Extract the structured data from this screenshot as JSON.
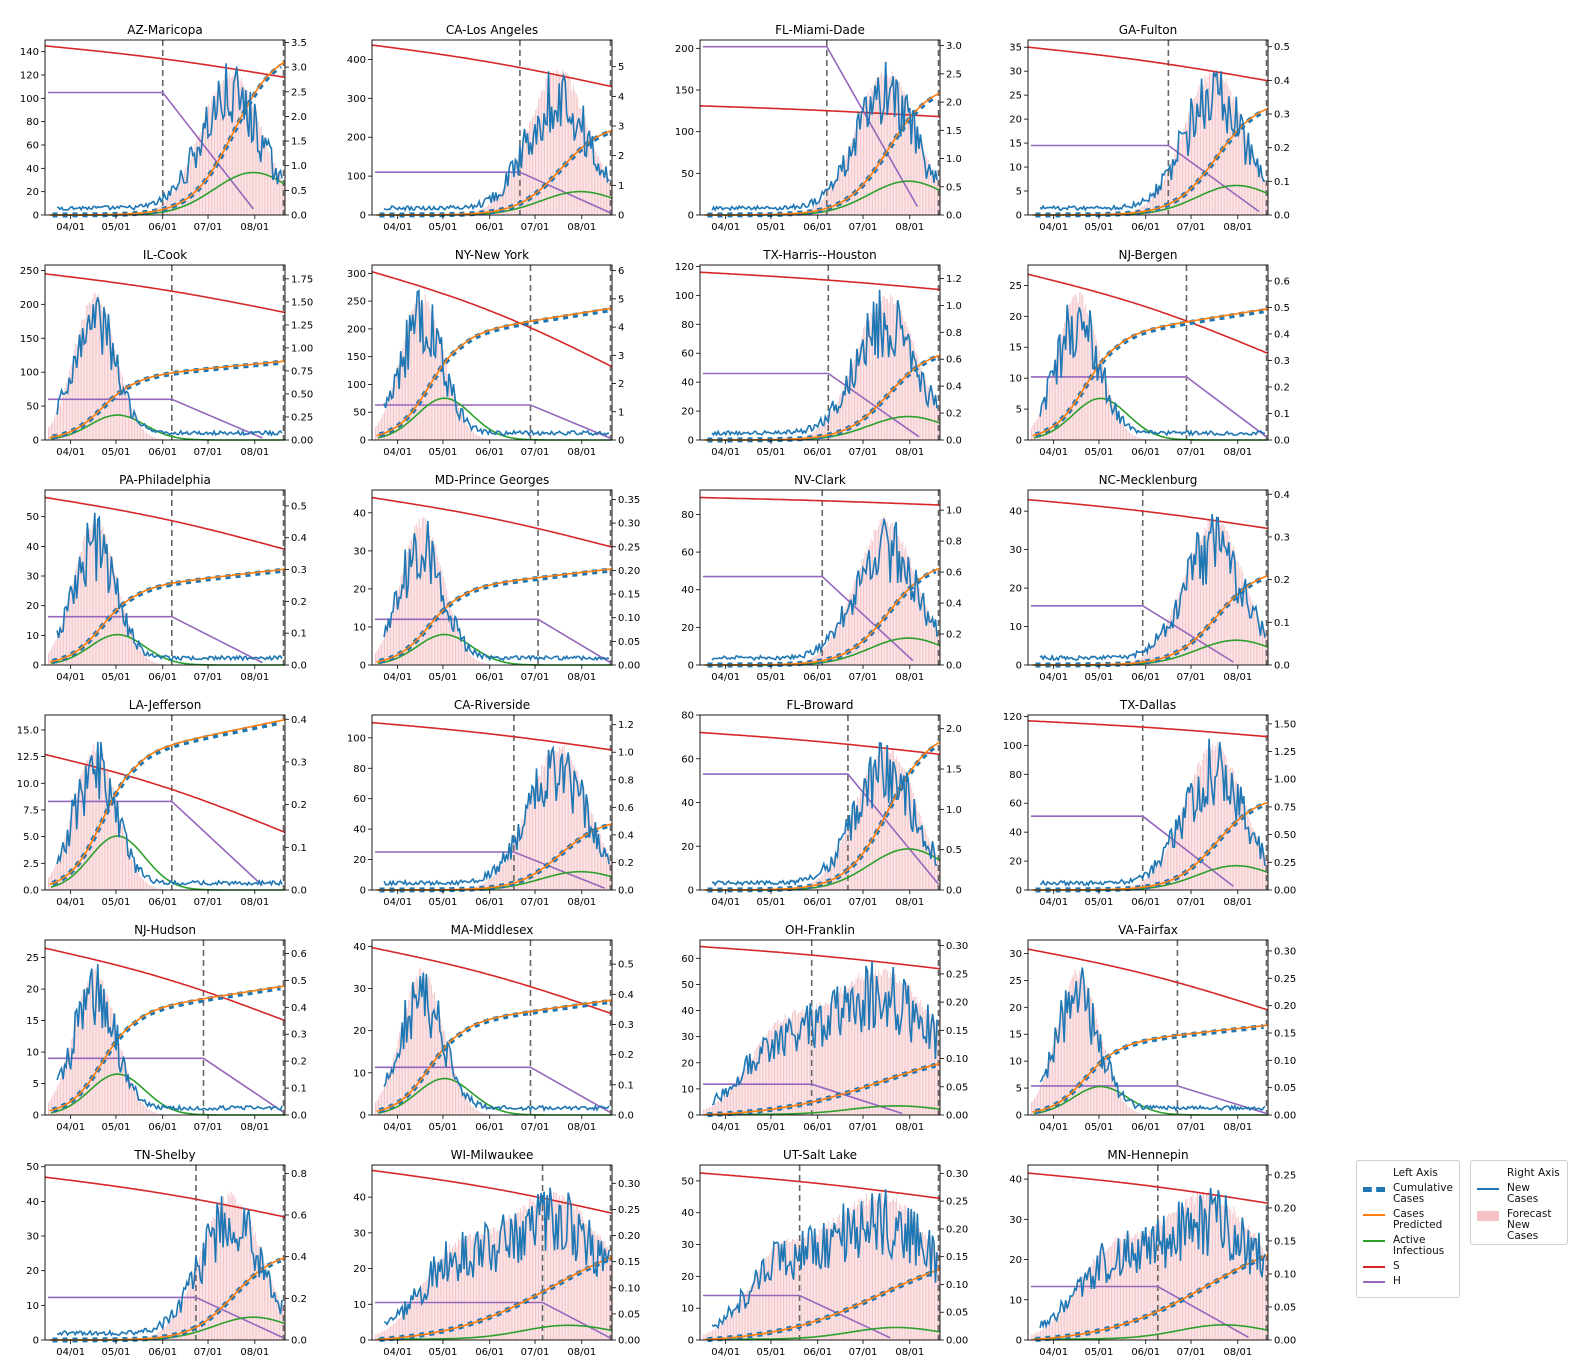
{
  "chart_data": {
    "type": "line",
    "x_ticks": [
      "04/01",
      "05/01",
      "06/01",
      "07/01",
      "08/01"
    ],
    "date_range": [
      "2020-03-15",
      "2020-08-21"
    ],
    "colors": {
      "cumulative": "#1f77b4",
      "predicted": "#ff7f0e",
      "active": "#2ca02c",
      "S": "#d62728",
      "H": "#9467bd",
      "new": "#1f77b4",
      "forecast": "#f4c2c6",
      "vline": "#666666"
    },
    "legend_left": {
      "title": "Left Axis",
      "items": [
        {
          "key": "cumulative",
          "label": "Cumulative\nCases"
        },
        {
          "key": "predicted",
          "label": "Cases\nPredicted"
        },
        {
          "key": "active",
          "label": "Active\nInfectious"
        },
        {
          "key": "S",
          "label": "S"
        },
        {
          "key": "H",
          "label": "H"
        }
      ]
    },
    "legend_right": {
      "title": "Right Axis",
      "items": [
        {
          "key": "new",
          "label": "New\nCases"
        },
        {
          "key": "forecast",
          "label": "Forecast\nNew\nCases"
        }
      ]
    },
    "panels": [
      {
        "title": "AZ-Maricopa",
        "left_ticks": [
          "0",
          "20",
          "40",
          "60",
          "80",
          "100",
          "120",
          "140"
        ],
        "left_max": 150,
        "right_ticks": [
          "0.0",
          "0.5",
          "1.0",
          "1.5",
          "2.0",
          "2.5",
          "3.0",
          "3.5"
        ],
        "right_max": 3.55,
        "vlines": [
          "2020-06-01",
          "2020-08-20"
        ],
        "shape": "late",
        "cases_end": 130,
        "s_start": 145,
        "s_end": 118,
        "h_level": 105
      },
      {
        "title": "CA-Los Angeles",
        "left_ticks": [
          "0",
          "100",
          "200",
          "300",
          "400"
        ],
        "left_max": 450,
        "right_ticks": [
          "0",
          "1",
          "2",
          "3",
          "4",
          "5"
        ],
        "right_max": 5.9,
        "vlines": [
          "2020-06-21",
          "2020-08-20"
        ],
        "shape": "late",
        "cases_end": 215,
        "s_start": 437,
        "s_end": 330,
        "h_level": 110
      },
      {
        "title": "FL-Miami-Dade",
        "left_ticks": [
          "0",
          "50",
          "100",
          "150",
          "200"
        ],
        "left_max": 210,
        "right_ticks": [
          "0.0",
          "0.5",
          "1.0",
          "1.5",
          "2.0",
          "2.5",
          "3.0"
        ],
        "right_max": 3.1,
        "vlines": [
          "2020-06-07",
          "2020-08-20"
        ],
        "shape": "late",
        "cases_end": 145,
        "s_start": 131,
        "s_end": 118,
        "h_level": 202
      },
      {
        "title": "GA-Fulton",
        "left_ticks": [
          "0",
          "5",
          "10",
          "15",
          "20",
          "25",
          "30",
          "35"
        ],
        "left_max": 36.5,
        "right_ticks": [
          "0.0",
          "0.1",
          "0.2",
          "0.3",
          "0.4",
          "0.5"
        ],
        "right_max": 0.52,
        "vlines": [
          "2020-06-16",
          "2020-08-20"
        ],
        "shape": "late",
        "cases_end": 22,
        "s_start": 35,
        "s_end": 28,
        "h_level": 14.5
      },
      {
        "title": "IL-Cook",
        "left_ticks": [
          "0",
          "50",
          "100",
          "150",
          "200",
          "250"
        ],
        "left_max": 258,
        "right_ticks": [
          "0.00",
          "0.25",
          "0.50",
          "0.75",
          "1.00",
          "1.25",
          "1.50",
          "1.75"
        ],
        "right_max": 1.9,
        "vlines": [
          "2020-06-07",
          "2020-08-20"
        ],
        "shape": "early",
        "cases_end": 115,
        "s_start": 245,
        "s_end": 188,
        "h_level": 60
      },
      {
        "title": "NY-New York",
        "left_ticks": [
          "0",
          "50",
          "100",
          "150",
          "200",
          "250",
          "300"
        ],
        "left_max": 315,
        "right_ticks": [
          "0",
          "1",
          "2",
          "3",
          "4",
          "5",
          "6"
        ],
        "right_max": 6.2,
        "vlines": [
          "2020-06-28",
          "2020-08-20"
        ],
        "shape": "early",
        "cases_end": 235,
        "s_start": 303,
        "s_end": 132,
        "h_level": 63
      },
      {
        "title": "TX-Harris--Houston",
        "left_ticks": [
          "0",
          "20",
          "40",
          "60",
          "80",
          "100",
          "120"
        ],
        "left_max": 121,
        "right_ticks": [
          "0.0",
          "0.2",
          "0.4",
          "0.6",
          "0.8",
          "1.0",
          "1.2"
        ],
        "right_max": 1.3,
        "vlines": [
          "2020-06-08",
          "2020-08-20"
        ],
        "shape": "late",
        "cases_end": 58,
        "s_start": 116,
        "s_end": 104,
        "h_level": 46
      },
      {
        "title": "NJ-Bergen",
        "left_ticks": [
          "0",
          "5",
          "10",
          "15",
          "20",
          "25"
        ],
        "left_max": 28.3,
        "right_ticks": [
          "0.0",
          "0.1",
          "0.2",
          "0.3",
          "0.4",
          "0.5",
          "0.6"
        ],
        "right_max": 0.66,
        "vlines": [
          "2020-06-28",
          "2020-08-20"
        ],
        "shape": "early",
        "cases_end": 21,
        "s_start": 26.8,
        "s_end": 14,
        "h_level": 10.2
      },
      {
        "title": "PA-Philadelphia",
        "left_ticks": [
          "0",
          "10",
          "20",
          "30",
          "40",
          "50"
        ],
        "left_max": 59,
        "right_ticks": [
          "0.0",
          "0.1",
          "0.2",
          "0.3",
          "0.4",
          "0.5"
        ],
        "right_max": 0.55,
        "vlines": [
          "2020-06-07",
          "2020-08-20"
        ],
        "shape": "early",
        "cases_end": 32,
        "s_start": 56.5,
        "s_end": 39,
        "h_level": 16.3
      },
      {
        "title": "MD-Prince Georges",
        "left_ticks": [
          "0",
          "10",
          "20",
          "30",
          "40"
        ],
        "left_max": 46,
        "right_ticks": [
          "0.00",
          "0.05",
          "0.10",
          "0.15",
          "0.20",
          "0.25",
          "0.30",
          "0.35"
        ],
        "right_max": 0.37,
        "vlines": [
          "2020-07-03",
          "2020-08-20"
        ],
        "shape": "early",
        "cases_end": 25,
        "s_start": 44,
        "s_end": 31,
        "h_level": 12
      },
      {
        "title": "NV-Clark",
        "left_ticks": [
          "0",
          "20",
          "40",
          "60",
          "80"
        ],
        "left_max": 93,
        "right_ticks": [
          "0.0",
          "0.2",
          "0.4",
          "0.6",
          "0.8",
          "1.0"
        ],
        "right_max": 1.13,
        "vlines": [
          "2020-06-04",
          "2020-08-20"
        ],
        "shape": "late",
        "cases_end": 51,
        "s_start": 89,
        "s_end": 85,
        "h_level": 47
      },
      {
        "title": "NC-Mecklenburg",
        "left_ticks": [
          "0",
          "10",
          "20",
          "30",
          "40"
        ],
        "left_max": 45.5,
        "right_ticks": [
          "0.0",
          "0.1",
          "0.2",
          "0.3",
          "0.4"
        ],
        "right_max": 0.41,
        "vlines": [
          "2020-05-30",
          "2020-08-20"
        ],
        "shape": "late",
        "cases_end": 23,
        "s_start": 43,
        "s_end": 35.5,
        "h_level": 15.4
      },
      {
        "title": "LA-Jefferson",
        "left_ticks": [
          "0.0",
          "2.5",
          "5.0",
          "7.5",
          "10.0",
          "12.5",
          "15.0"
        ],
        "left_max": 16.4,
        "right_ticks": [
          "0.0",
          "0.1",
          "0.2",
          "0.3",
          "0.4"
        ],
        "right_max": 0.41,
        "vlines": [
          "2020-06-07",
          "2020-08-20"
        ],
        "shape": "early",
        "cases_end": 15.8,
        "s_start": 12.7,
        "s_end": 5.4,
        "h_level": 8.3
      },
      {
        "title": "CA-Riverside",
        "left_ticks": [
          "0",
          "20",
          "40",
          "60",
          "80",
          "100"
        ],
        "left_max": 115,
        "right_ticks": [
          "0.0",
          "0.2",
          "0.4",
          "0.6",
          "0.8",
          "1.0",
          "1.2"
        ],
        "right_max": 1.27,
        "vlines": [
          "2020-06-17",
          "2020-08-20"
        ],
        "shape": "late",
        "cases_end": 43,
        "s_start": 110,
        "s_end": 92,
        "h_level": 25
      },
      {
        "title": "FL-Broward",
        "left_ticks": [
          "0",
          "20",
          "40",
          "60",
          "80"
        ],
        "left_max": 80,
        "right_ticks": [
          "0.0",
          "0.5",
          "1.0",
          "1.5",
          "2.0"
        ],
        "right_max": 2.17,
        "vlines": [
          "2020-06-21",
          "2020-08-20"
        ],
        "shape": "late",
        "cases_end": 67,
        "s_start": 72,
        "s_end": 62,
        "h_level": 53
      },
      {
        "title": "TX-Dallas",
        "left_ticks": [
          "0",
          "20",
          "40",
          "60",
          "80",
          "100",
          "120"
        ],
        "left_max": 121,
        "right_ticks": [
          "0.00",
          "0.25",
          "0.50",
          "0.75",
          "1.00",
          "1.25",
          "1.50"
        ],
        "right_max": 1.58,
        "vlines": [
          "2020-05-30",
          "2020-08-20"
        ],
        "shape": "late",
        "cases_end": 60,
        "s_start": 117,
        "s_end": 106,
        "h_level": 51
      },
      {
        "title": "NJ-Hudson",
        "left_ticks": [
          "0",
          "5",
          "10",
          "15",
          "20",
          "25"
        ],
        "left_max": 27.8,
        "right_ticks": [
          "0.0",
          "0.1",
          "0.2",
          "0.3",
          "0.4",
          "0.5",
          "0.6"
        ],
        "right_max": 0.65,
        "vlines": [
          "2020-06-28",
          "2020-08-20"
        ],
        "shape": "early",
        "cases_end": 20.3,
        "s_start": 26.5,
        "s_end": 15,
        "h_level": 9
      },
      {
        "title": "MA-Middlesex",
        "left_ticks": [
          "0",
          "10",
          "20",
          "30",
          "40"
        ],
        "left_max": 41.5,
        "right_ticks": [
          "0.0",
          "0.1",
          "0.2",
          "0.3",
          "0.4",
          "0.5"
        ],
        "right_max": 0.58,
        "vlines": [
          "2020-06-28",
          "2020-08-20"
        ],
        "shape": "early",
        "cases_end": 27,
        "s_start": 39.7,
        "s_end": 24,
        "h_level": 11.3
      },
      {
        "title": "OH-Franklin",
        "left_ticks": [
          "0",
          "10",
          "20",
          "30",
          "40",
          "50",
          "60"
        ],
        "left_max": 67,
        "right_ticks": [
          "0.00",
          "0.05",
          "0.10",
          "0.15",
          "0.20",
          "0.25",
          "0.30"
        ],
        "right_max": 0.31,
        "vlines": [
          "2020-05-28",
          "2020-08-20"
        ],
        "shape": "mid",
        "cases_end": 19.5,
        "s_start": 64.5,
        "s_end": 56,
        "h_level": 11.8
      },
      {
        "title": "VA-Fairfax",
        "left_ticks": [
          "0",
          "5",
          "10",
          "15",
          "20",
          "25",
          "30"
        ],
        "left_max": 32.5,
        "right_ticks": [
          "0.00",
          "0.05",
          "0.10",
          "0.15",
          "0.20",
          "0.25",
          "0.30"
        ],
        "right_max": 0.32,
        "vlines": [
          "2020-06-22",
          "2020-08-20"
        ],
        "shape": "early",
        "cases_end": 16.5,
        "s_start": 30.8,
        "s_end": 19.5,
        "h_level": 5.4
      },
      {
        "title": "TN-Shelby",
        "left_ticks": [
          "0",
          "10",
          "20",
          "30",
          "40",
          "50"
        ],
        "left_max": 50.5,
        "right_ticks": [
          "0.0",
          "0.2",
          "0.4",
          "0.6",
          "0.8"
        ],
        "right_max": 0.84,
        "vlines": [
          "2020-06-23",
          "2020-08-20"
        ],
        "shape": "late",
        "cases_end": 23.5,
        "s_start": 47,
        "s_end": 35.5,
        "h_level": 12.3
      },
      {
        "title": "WI-Milwaukee",
        "left_ticks": [
          "0",
          "10",
          "20",
          "30",
          "40"
        ],
        "left_max": 49,
        "right_ticks": [
          "0.00",
          "0.05",
          "0.10",
          "0.15",
          "0.20",
          "0.25",
          "0.30"
        ],
        "right_max": 0.335,
        "vlines": [
          "2020-07-06",
          "2020-08-20"
        ],
        "shape": "mid",
        "cases_end": 23,
        "s_start": 47.5,
        "s_end": 35.5,
        "h_level": 10.5
      },
      {
        "title": "UT-Salt Lake",
        "left_ticks": [
          "0",
          "10",
          "20",
          "30",
          "40",
          "50"
        ],
        "left_max": 55,
        "right_ticks": [
          "0.00",
          "0.05",
          "0.10",
          "0.15",
          "0.20",
          "0.25",
          "0.30"
        ],
        "right_max": 0.315,
        "vlines": [
          "2020-05-20",
          "2020-08-20"
        ],
        "shape": "mid",
        "cases_end": 22,
        "s_start": 52.5,
        "s_end": 44.5,
        "h_level": 14
      },
      {
        "title": "MN-Hennepin",
        "left_ticks": [
          "0",
          "10",
          "20",
          "30",
          "40"
        ],
        "left_max": 43.5,
        "right_ticks": [
          "0.00",
          "0.05",
          "0.10",
          "0.15",
          "0.20",
          "0.25"
        ],
        "right_max": 0.265,
        "vlines": [
          "2020-06-09",
          "2020-08-20"
        ],
        "shape": "mid",
        "cases_end": 21,
        "s_start": 41.5,
        "s_end": 34,
        "h_level": 13.3
      }
    ]
  }
}
